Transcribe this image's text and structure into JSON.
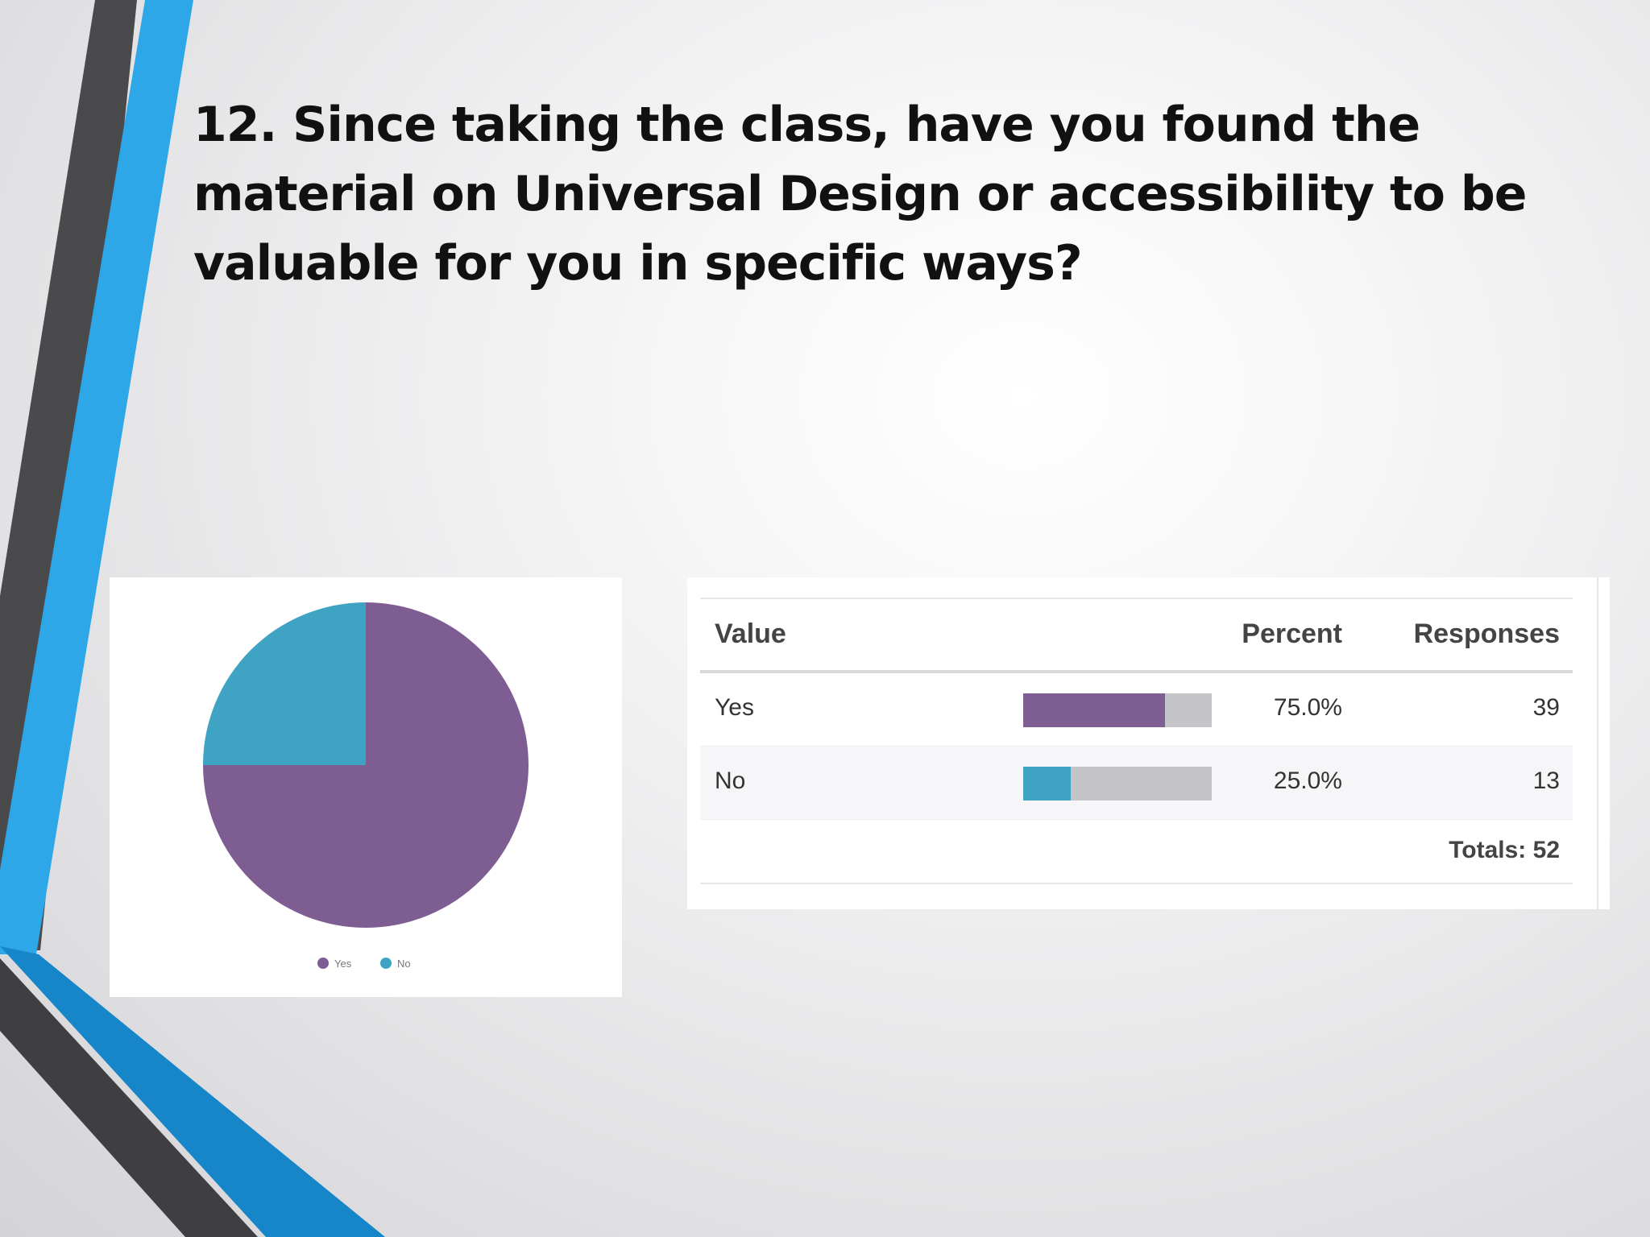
{
  "slide": {
    "title": "12. Since taking the class, have you found the material on Universal Design or accessibility to be valuable for you in specific ways?"
  },
  "colors": {
    "yes": "#7e5e92",
    "no": "#3fa3c4",
    "bar_track": "#c5c4c9",
    "deco_blue": "#2ea7e9",
    "deco_dark": "#4a4a4c"
  },
  "chart_data": [
    {
      "type": "pie",
      "title": "",
      "series": [
        {
          "name": "Yes",
          "value": 75.0,
          "color": "#7e5e92"
        },
        {
          "name": "No",
          "value": 25.0,
          "color": "#3fa3c4"
        }
      ],
      "legend": {
        "placement": "bottom",
        "labels": [
          "Yes",
          "No"
        ]
      }
    },
    {
      "type": "table",
      "columns": [
        "Value",
        "Percent",
        "Responses"
      ],
      "rows": [
        {
          "value": "Yes",
          "percent": "75.0%",
          "percent_num": 75.0,
          "responses": "39",
          "color": "#7e5e92"
        },
        {
          "value": "No",
          "percent": "25.0%",
          "percent_num": 25.0,
          "responses": "13",
          "color": "#3fa3c4"
        }
      ],
      "totals": "Totals: 52"
    }
  ]
}
